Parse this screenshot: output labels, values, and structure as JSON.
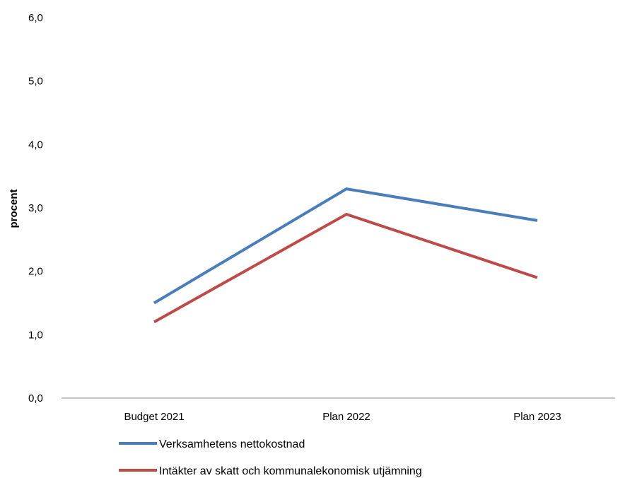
{
  "chart_data": {
    "type": "line",
    "categories": [
      "Budget 2021",
      "Plan 2022",
      "Plan 2023"
    ],
    "series": [
      {
        "name": "Verksamhetens nettokostnad",
        "values": [
          1.5,
          3.3,
          2.8
        ],
        "color": "#4a7ebb"
      },
      {
        "name": "Intäkter av skatt och kommunalekonomisk utjämning",
        "values": [
          1.2,
          2.9,
          1.9
        ],
        "color": "#be4b48"
      }
    ],
    "ylabel": "procent",
    "ylim": [
      0,
      6
    ],
    "yticks": [
      "0,0",
      "1,0",
      "2,0",
      "3,0",
      "4,0",
      "5,0",
      "6,0"
    ],
    "grid": false,
    "legend_position": "bottom-left"
  }
}
